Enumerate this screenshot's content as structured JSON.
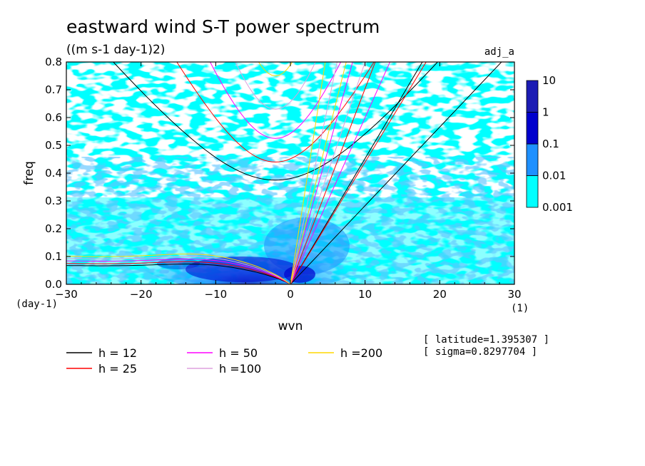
{
  "chart_data": {
    "type": "heatmap",
    "title": "eastward wind S-T power spectrum",
    "subtitle": "((m s-1 day-1)2)",
    "corner_label": "adj_a",
    "xlabel": "wvn",
    "ylabel": "freq",
    "x_unit": "(1)",
    "y_unit": "(day-1)",
    "xlim": [
      -30,
      30
    ],
    "ylim": [
      0,
      0.8
    ],
    "x_ticks": [
      "−30",
      "−20",
      "−10",
      "0",
      "10",
      "20",
      "30"
    ],
    "y_ticks": [
      "0.0",
      "0.1",
      "0.2",
      "0.3",
      "0.4",
      "0.5",
      "0.6",
      "0.7",
      "0.8"
    ],
    "colorbar": {
      "levels": [
        "0.001",
        "0.01",
        "0.1",
        "1",
        "10"
      ],
      "colors": [
        "#00ffff",
        "#1e90ff",
        "#0000cd",
        "#1c1cb4"
      ]
    },
    "annotations": [
      "[ latitude=1.395307 ]",
      "[ sigma=0.8297704 ]"
    ],
    "legend": [
      {
        "label": "h = 12",
        "color": "#000000"
      },
      {
        "label": "h = 25",
        "color": "#ff0000"
      },
      {
        "label": "h = 50",
        "color": "#ff00ff"
      },
      {
        "label": "h =100",
        "color": "#dda0dd"
      },
      {
        "label": "h =200",
        "color": "#ffd700"
      }
    ],
    "series": [
      {
        "h": 12,
        "color": "#000000",
        "kelvin_slope": 0.0283,
        "wig_base": 0.375,
        "mrg_base": 0.081
      },
      {
        "h": 25,
        "color": "#ff0000",
        "kelvin_slope": 0.044,
        "wig_base": 0.44,
        "mrg_base": 0.09
      },
      {
        "h": 50,
        "color": "#ff00ff",
        "kelvin_slope": 0.06,
        "wig_base": 0.525,
        "mrg_base": 0.101
      },
      {
        "h": 100,
        "color": "#dda0dd",
        "kelvin_slope": 0.08,
        "wig_base": 0.63,
        "mrg_base": 0.111
      },
      {
        "h": 200,
        "color": "#ffd700",
        "kelvin_slope": 0.107,
        "wig_base": 0.75,
        "mrg_base": 0.121
      }
    ]
  }
}
